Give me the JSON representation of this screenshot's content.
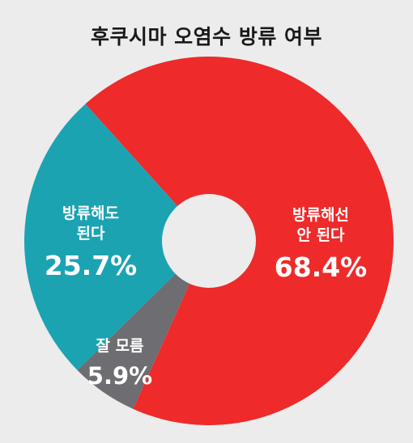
{
  "title": "후쿠시마 오염수 방류 여부",
  "chart_data": {
    "type": "pie",
    "donut": true,
    "title": "후쿠시마 오염수 방류 여부",
    "slices": [
      {
        "label_lines": [
          "방류해선",
          "안 된다"
        ],
        "value": 68.4,
        "value_label": "68.4%",
        "color": "#ee2a2a"
      },
      {
        "label_lines": [
          "잘 모름"
        ],
        "value": 5.9,
        "value_label": "5.9%",
        "color": "#6d6d72"
      },
      {
        "label_lines": [
          "방류해도",
          "된다"
        ],
        "value": 25.7,
        "value_label": "25.7%",
        "color": "#1ba3b2"
      }
    ]
  }
}
